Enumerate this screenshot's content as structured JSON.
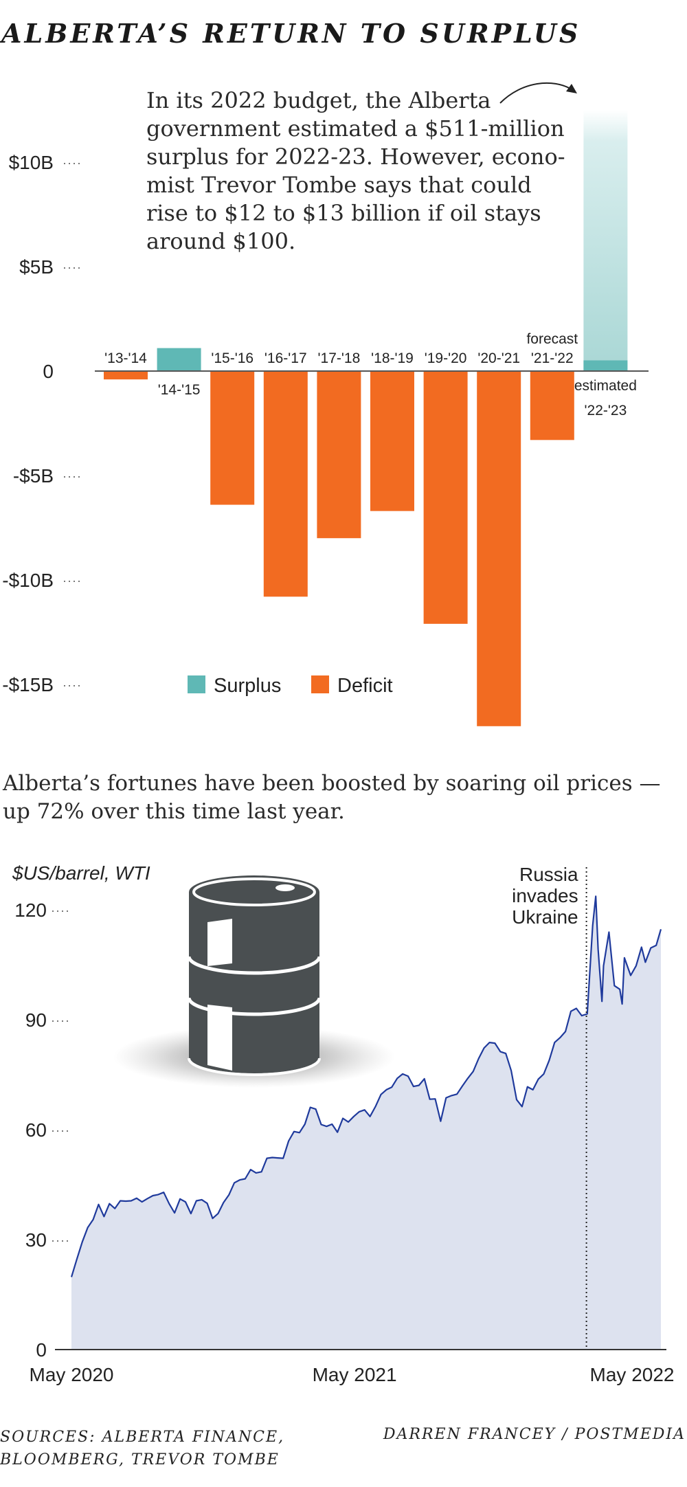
{
  "title": "ALBERTA’S RETURN TO SURPLUS",
  "note_lines": [
    "In its 2022 budget, the Alberta",
    "government estimated a $511-million",
    "surplus for 2022-23. However, econo-",
    "mist Trevor Tombe says that could",
    "rise to $12 to $13 billion if oil stays",
    "around $100."
  ],
  "subtitle_lines": [
    "Alberta’s fortunes have been boosted by soaring oil prices —",
    "up 72% over this time last year."
  ],
  "colors": {
    "surplus": "#5fb8b5",
    "deficit": "#f26b21",
    "projection_light": "#d9eeee",
    "oil_line": "#1f3a9c",
    "oil_fill": "#dde2ef",
    "barrel": "#4a4f51"
  },
  "chart_data": [
    {
      "type": "bar",
      "categories": [
        "'13-'14",
        "'14-'15",
        "'15-'16",
        "'16-'17",
        "'17-'18",
        "'18-'19",
        "'19-'20",
        "'20-'21",
        "'21-'22",
        "'22-'23"
      ],
      "values": [
        -0.4,
        1.1,
        -6.4,
        -10.8,
        -8.0,
        -6.7,
        -12.1,
        -17.0,
        -3.3,
        0.511
      ],
      "projected_range_top": 12.5,
      "category_notes": {
        "'21-'22": "forecast",
        "'22-'23": "estimated"
      },
      "ylim": [
        -17,
        13
      ],
      "yticks": [
        10,
        5,
        0,
        -5,
        -10,
        -15
      ],
      "ytick_labels": [
        "$10B",
        "$5B",
        "0",
        "-$5B",
        "-$10B",
        "-$15B"
      ],
      "legend": [
        "Surplus",
        "Deficit"
      ],
      "legend_placement": "bottom-center"
    },
    {
      "type": "area",
      "ylabel": "$US/barrel, WTI",
      "ylim": [
        0,
        120
      ],
      "yticks": [
        0,
        30,
        60,
        90,
        120
      ],
      "x_range": [
        "2020-05-01",
        "2022-05-31"
      ],
      "xtick_labels": [
        [
          "2020-05-01",
          "May 2020"
        ],
        [
          "2021-05-01",
          "May 2021"
        ],
        [
          "2022-05-01",
          "May 2022"
        ]
      ],
      "annotation": {
        "date": "2022-02-24",
        "text": [
          "Russia",
          "invades",
          "Ukraine"
        ]
      },
      "series": [
        {
          "points": [
            [
              "2020-05-01",
              19.8
            ],
            [
              "2020-05-08",
              24.7
            ],
            [
              "2020-05-15",
              29.4
            ],
            [
              "2020-05-22",
              33.3
            ],
            [
              "2020-05-29",
              35.5
            ],
            [
              "2020-06-05",
              39.6
            ],
            [
              "2020-06-12",
              36.3
            ],
            [
              "2020-06-19",
              39.8
            ],
            [
              "2020-06-26",
              38.5
            ],
            [
              "2020-07-03",
              40.6
            ],
            [
              "2020-07-10",
              40.5
            ],
            [
              "2020-07-17",
              40.6
            ],
            [
              "2020-07-24",
              41.3
            ],
            [
              "2020-07-31",
              40.3
            ],
            [
              "2020-08-07",
              41.2
            ],
            [
              "2020-08-14",
              42.0
            ],
            [
              "2020-08-21",
              42.3
            ],
            [
              "2020-08-28",
              42.9
            ],
            [
              "2020-09-04",
              39.8
            ],
            [
              "2020-09-11",
              37.3
            ],
            [
              "2020-09-18",
              41.1
            ],
            [
              "2020-09-25",
              40.3
            ],
            [
              "2020-10-02",
              37.1
            ],
            [
              "2020-10-09",
              40.6
            ],
            [
              "2020-10-16",
              40.9
            ],
            [
              "2020-10-23",
              39.9
            ],
            [
              "2020-10-30",
              35.8
            ],
            [
              "2020-11-06",
              37.1
            ],
            [
              "2020-11-13",
              40.1
            ],
            [
              "2020-11-20",
              42.2
            ],
            [
              "2020-11-27",
              45.5
            ],
            [
              "2020-12-04",
              46.3
            ],
            [
              "2020-12-11",
              46.6
            ],
            [
              "2020-12-18",
              49.1
            ],
            [
              "2020-12-25",
              48.2
            ],
            [
              "2021-01-01",
              48.5
            ],
            [
              "2021-01-08",
              52.2
            ],
            [
              "2021-01-15",
              52.4
            ],
            [
              "2021-01-22",
              52.3
            ],
            [
              "2021-01-29",
              52.2
            ],
            [
              "2021-02-05",
              56.9
            ],
            [
              "2021-02-12",
              59.5
            ],
            [
              "2021-02-19",
              59.2
            ],
            [
              "2021-02-26",
              61.5
            ],
            [
              "2021-03-05",
              66.1
            ],
            [
              "2021-03-12",
              65.6
            ],
            [
              "2021-03-19",
              61.4
            ],
            [
              "2021-03-26",
              60.9
            ],
            [
              "2021-04-02",
              61.5
            ],
            [
              "2021-04-09",
              59.3
            ],
            [
              "2021-04-16",
              63.1
            ],
            [
              "2021-04-23",
              62.1
            ],
            [
              "2021-04-30",
              63.6
            ],
            [
              "2021-05-07",
              64.9
            ],
            [
              "2021-05-14",
              65.4
            ],
            [
              "2021-05-21",
              63.6
            ],
            [
              "2021-05-28",
              66.3
            ],
            [
              "2021-06-04",
              69.6
            ],
            [
              "2021-06-11",
              70.9
            ],
            [
              "2021-06-18",
              71.6
            ],
            [
              "2021-06-25",
              74.0
            ],
            [
              "2021-07-02",
              75.2
            ],
            [
              "2021-07-09",
              74.6
            ],
            [
              "2021-07-16",
              71.8
            ],
            [
              "2021-07-23",
              72.1
            ],
            [
              "2021-07-30",
              73.9
            ],
            [
              "2021-08-06",
              68.3
            ],
            [
              "2021-08-13",
              68.4
            ],
            [
              "2021-08-20",
              62.3
            ],
            [
              "2021-08-27",
              68.7
            ],
            [
              "2021-09-03",
              69.3
            ],
            [
              "2021-09-10",
              69.7
            ],
            [
              "2021-09-17",
              71.9
            ],
            [
              "2021-09-24",
              74.0
            ],
            [
              "2021-10-01",
              75.9
            ],
            [
              "2021-10-08",
              79.4
            ],
            [
              "2021-10-15",
              82.3
            ],
            [
              "2021-10-22",
              83.8
            ],
            [
              "2021-10-29",
              83.6
            ],
            [
              "2021-11-05",
              81.3
            ],
            [
              "2021-11-12",
              80.8
            ],
            [
              "2021-11-19",
              76.1
            ],
            [
              "2021-11-26",
              68.2
            ],
            [
              "2021-12-03",
              66.3
            ],
            [
              "2021-12-10",
              71.7
            ],
            [
              "2021-12-17",
              70.9
            ],
            [
              "2021-12-24",
              73.8
            ],
            [
              "2021-12-31",
              75.2
            ],
            [
              "2022-01-07",
              78.9
            ],
            [
              "2022-01-14",
              83.8
            ],
            [
              "2022-01-21",
              85.1
            ],
            [
              "2022-01-28",
              86.8
            ],
            [
              "2022-02-04",
              92.3
            ],
            [
              "2022-02-11",
              93.1
            ],
            [
              "2022-02-18",
              91.1
            ],
            [
              "2022-02-25",
              91.6
            ],
            [
              "2022-03-04",
              115.7
            ],
            [
              "2022-03-08",
              123.7
            ],
            [
              "2022-03-11",
              109.3
            ],
            [
              "2022-03-16",
              95.0
            ],
            [
              "2022-03-18",
              104.7
            ],
            [
              "2022-03-25",
              113.9
            ],
            [
              "2022-04-01",
              99.3
            ],
            [
              "2022-04-08",
              98.3
            ],
            [
              "2022-04-11",
              94.3
            ],
            [
              "2022-04-14",
              106.9
            ],
            [
              "2022-04-22",
              102.1
            ],
            [
              "2022-04-29",
              104.7
            ],
            [
              "2022-05-06",
              109.8
            ],
            [
              "2022-05-11",
              105.7
            ],
            [
              "2022-05-18",
              109.6
            ],
            [
              "2022-05-25",
              110.3
            ],
            [
              "2022-05-31",
              114.7
            ]
          ]
        }
      ]
    }
  ],
  "footer": {
    "sources_lines": [
      "SOURCES: ALBERTA FINANCE,",
      "BLOOMBERG, TREVOR TOMBE"
    ],
    "credit": "DARREN FRANCEY / POSTMEDIA"
  }
}
